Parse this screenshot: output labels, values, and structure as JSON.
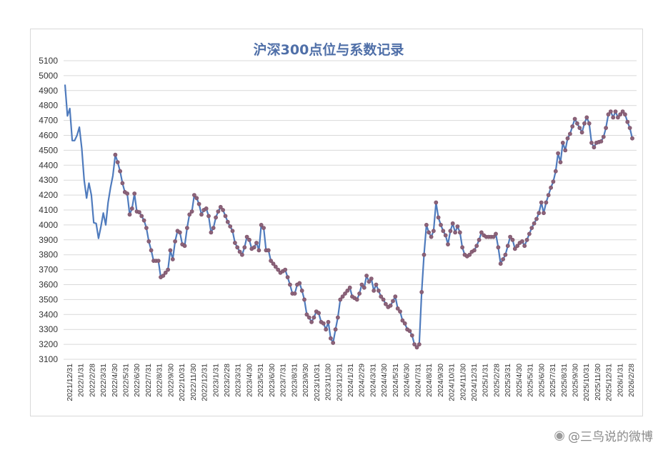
{
  "chart_data": {
    "type": "line",
    "title": "沪深300点位与系数记录",
    "ylim": [
      3100,
      5100
    ],
    "yticks": [
      3100,
      3200,
      3300,
      3400,
      3500,
      3600,
      3700,
      3800,
      3900,
      4000,
      4100,
      4200,
      4300,
      4400,
      4500,
      4600,
      4700,
      4800,
      4900,
      5000,
      5100
    ],
    "xticks": [
      "2021/12/31",
      "2022/1/31",
      "2022/2/28",
      "2022/3/31",
      "2022/4/30",
      "2022/5/31",
      "2022/6/30",
      "2022/7/31",
      "2022/8/31",
      "2022/9/30",
      "2022/10/31",
      "2022/11/30",
      "2022/12/31",
      "2023/1/31",
      "2023/2/28",
      "2023/3/31",
      "2023/4/30",
      "2023/5/31",
      "2023/6/30",
      "2023/7/31",
      "2023/8/31",
      "2023/9/30",
      "2023/10/31",
      "2023/11/30",
      "2023/12/31",
      "2024/1/31",
      "2024/2/29",
      "2024/3/31",
      "2024/4/30",
      "2024/5/31",
      "2024/6/30",
      "2024/7/31",
      "2024/8/31",
      "2024/9/30",
      "2024/10/31",
      "2024/11/30",
      "2024/12/31",
      "2025/1/31",
      "2025/2/28",
      "2025/3/31",
      "2025/4/30",
      "2025/5/31",
      "2025/6/30",
      "2025/7/31",
      "2025/8/31",
      "2025/9/30",
      "2025/10/31",
      "2025/11/30",
      "2025/12/31",
      "2026/1/31",
      "2026/2/28"
    ],
    "series": [
      {
        "values": [
          4940,
          4730,
          4780,
          4565,
          4565,
          4600,
          4655,
          4510,
          4300,
          4180,
          4280,
          4200,
          4015,
          4010,
          3910,
          3990,
          4080,
          4000,
          4150,
          4250,
          4330,
          4470,
          4420,
          4360,
          4280,
          4220,
          4210,
          4070,
          4110,
          4210,
          4090,
          4085,
          4060,
          4030,
          3980,
          3890,
          3830,
          3760,
          3760,
          3760,
          3650,
          3660,
          3680,
          3700,
          3830,
          3770,
          3890,
          3960,
          3950,
          3870,
          3860,
          3980,
          4070,
          4090,
          4200,
          4180,
          4140,
          4070,
          4100,
          4110,
          4060,
          3950,
          3980,
          4050,
          4090,
          4120,
          4100,
          4060,
          4020,
          3990,
          3960,
          3880,
          3850,
          3820,
          3800,
          3850,
          3920,
          3900,
          3840,
          3850,
          3880,
          3830,
          4000,
          3980,
          3830,
          3830,
          3760,
          3740,
          3720,
          3700,
          3680,
          3690,
          3700,
          3650,
          3600,
          3540,
          3540,
          3600,
          3610,
          3560,
          3500,
          3400,
          3380,
          3350,
          3380,
          3420,
          3410,
          3350,
          3340,
          3300,
          3350,
          3240,
          3210,
          3300,
          3380,
          3500,
          3520,
          3540,
          3560,
          3580,
          3520,
          3510,
          3500,
          3540,
          3600,
          3580,
          3660,
          3620,
          3640,
          3560,
          3600,
          3560,
          3520,
          3500,
          3470,
          3450,
          3460,
          3490,
          3520,
          3440,
          3420,
          3360,
          3340,
          3300,
          3290,
          3260,
          3200,
          3180,
          3200,
          3550,
          3800,
          4000,
          3950,
          3920,
          3960,
          4150,
          4050,
          4000,
          3960,
          3930,
          3870,
          3960,
          4010,
          3950,
          3990,
          3950,
          3850,
          3800,
          3790,
          3800,
          3820,
          3830,
          3860,
          3900,
          3950,
          3930,
          3920,
          3920,
          3920,
          3920,
          3940,
          3850,
          3740,
          3770,
          3800,
          3860,
          3920,
          3900,
          3840,
          3860,
          3880,
          3890,
          3860,
          3900,
          3940,
          3980,
          4010,
          4040,
          4080,
          4150,
          4080,
          4150,
          4200,
          4250,
          4290,
          4360,
          4480,
          4420,
          4550,
          4500,
          4580,
          4610,
          4660,
          4710,
          4680,
          4650,
          4620,
          4680,
          4720,
          4680,
          4550,
          4520,
          4550,
          4555,
          4560,
          4590,
          4650,
          4740,
          4760,
          4720,
          4760,
          4720,
          4740,
          4760,
          4740,
          4690,
          4650,
          4580
        ]
      }
    ]
  },
  "watermark": {
    "text": "@三鸟说的微博"
  }
}
